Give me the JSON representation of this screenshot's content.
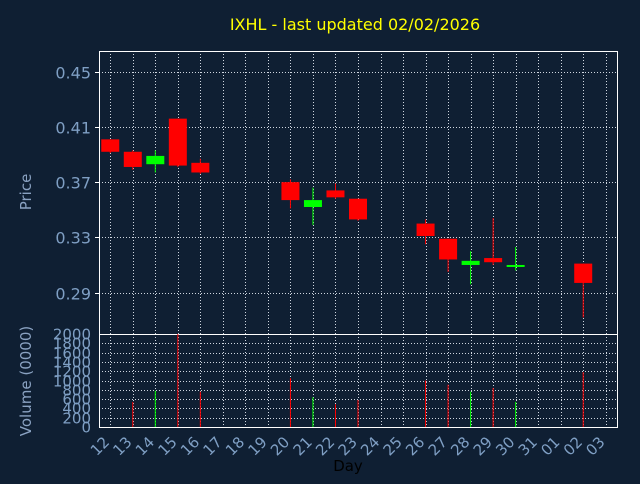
{
  "title": "IXHL - last updated 02/02/2026",
  "colors": {
    "background": "#0f1f33",
    "title": "#ffff00",
    "axis_text": "#7f9fc4",
    "axis_label": "#8aa2c2",
    "grid": "#cfd6e0",
    "frame": "#ffffff",
    "up": "#00ff00",
    "down": "#ff0000",
    "xlabel": "#000000"
  },
  "chart_data": [
    {
      "type": "candlestick",
      "title": "IXHL - last updated 02/02/2026",
      "ylabel": "Price",
      "ylim": [
        0.26,
        0.465
      ],
      "yticks": [
        "0.45",
        "0.41",
        "0.37",
        "0.33",
        "0.29"
      ],
      "grid": true,
      "x_categories": [
        "12",
        "13",
        "14",
        "15",
        "16",
        "17",
        "18",
        "19",
        "20",
        "21",
        "22",
        "23",
        "24",
        "25",
        "26",
        "27",
        "28",
        "29",
        "30",
        "31",
        "01",
        "02",
        "03"
      ],
      "candles": [
        {
          "day": "12",
          "open": 0.401,
          "high": 0.401,
          "low": 0.391,
          "close": 0.392
        },
        {
          "day": "13",
          "open": 0.392,
          "high": 0.393,
          "low": 0.379,
          "close": 0.381
        },
        {
          "day": "14",
          "open": 0.383,
          "high": 0.393,
          "low": 0.377,
          "close": 0.389
        },
        {
          "day": "15",
          "open": 0.416,
          "high": 0.416,
          "low": 0.381,
          "close": 0.382
        },
        {
          "day": "16",
          "open": 0.384,
          "high": 0.387,
          "low": 0.376,
          "close": 0.377
        },
        {
          "day": "20",
          "open": 0.37,
          "high": 0.372,
          "low": 0.351,
          "close": 0.357
        },
        {
          "day": "21",
          "open": 0.352,
          "high": 0.366,
          "low": 0.339,
          "close": 0.357
        },
        {
          "day": "22",
          "open": 0.364,
          "high": 0.369,
          "low": 0.358,
          "close": 0.359
        },
        {
          "day": "23",
          "open": 0.358,
          "high": 0.358,
          "low": 0.342,
          "close": 0.343
        },
        {
          "day": "26",
          "open": 0.34,
          "high": 0.343,
          "low": 0.325,
          "close": 0.331
        },
        {
          "day": "27",
          "open": 0.329,
          "high": 0.329,
          "low": 0.305,
          "close": 0.314
        },
        {
          "day": "28",
          "open": 0.31,
          "high": 0.32,
          "low": 0.296,
          "close": 0.313
        },
        {
          "day": "29",
          "open": 0.315,
          "high": 0.344,
          "low": 0.31,
          "close": 0.312
        },
        {
          "day": "30",
          "open": 0.309,
          "high": 0.323,
          "low": 0.306,
          "close": 0.31
        },
        {
          "day": "02",
          "open": 0.311,
          "high": 0.311,
          "low": 0.272,
          "close": 0.297
        }
      ]
    },
    {
      "type": "bar",
      "ylabel": "Volume (0000)",
      "xlabel": "Day",
      "ylim": [
        0,
        2000
      ],
      "yticks": [
        "2000",
        "1800",
        "1600",
        "1400",
        "1200",
        "1000",
        "800",
        "600",
        "400",
        "200",
        "0"
      ],
      "grid": true,
      "values": [
        {
          "day": "13",
          "volume": 540,
          "direction": "down"
        },
        {
          "day": "14",
          "volume": 780,
          "direction": "up"
        },
        {
          "day": "15",
          "volume": 2000,
          "direction": "down"
        },
        {
          "day": "16",
          "volume": 760,
          "direction": "down"
        },
        {
          "day": "20",
          "volume": 1050,
          "direction": "down"
        },
        {
          "day": "21",
          "volume": 640,
          "direction": "up"
        },
        {
          "day": "22",
          "volume": 490,
          "direction": "down"
        },
        {
          "day": "23",
          "volume": 580,
          "direction": "down"
        },
        {
          "day": "26",
          "volume": 1000,
          "direction": "down"
        },
        {
          "day": "27",
          "volume": 910,
          "direction": "down"
        },
        {
          "day": "28",
          "volume": 760,
          "direction": "up"
        },
        {
          "day": "29",
          "volume": 840,
          "direction": "down"
        },
        {
          "day": "30",
          "volume": 540,
          "direction": "up"
        },
        {
          "day": "02",
          "volume": 1180,
          "direction": "down"
        }
      ]
    }
  ]
}
